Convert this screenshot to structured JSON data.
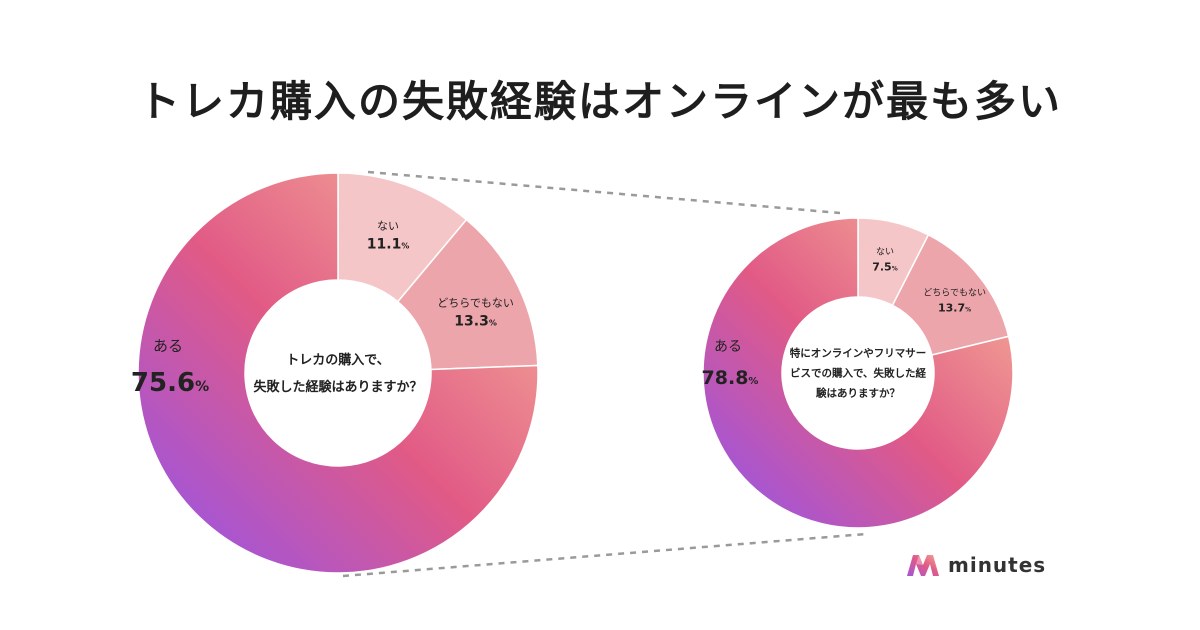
{
  "title": "トレカ購入の失敗経験はオンラインが最も多い",
  "brand": {
    "name": "minutes",
    "logo_icon": "minutes-logo-icon"
  },
  "chart_data": [
    {
      "type": "pie",
      "style": "donut",
      "center_label_lines": [
        "トレカの購入で、",
        "失敗した経験はありますか？"
      ],
      "unit": "%",
      "slices": [
        {
          "label": "ない",
          "value": 11.1,
          "color": "#f5c6c8"
        },
        {
          "label": "どちらでもない",
          "value": 13.3,
          "color": "#eda5ac"
        },
        {
          "label": "ある",
          "value": 75.6,
          "color": "#e15a86"
        }
      ]
    },
    {
      "type": "pie",
      "style": "donut",
      "center_label_lines": [
        "特にオンラインやフリマサー",
        "ビスでの購入で、失敗した経",
        "験はありますか？"
      ],
      "unit": "%",
      "slices": [
        {
          "label": "ない",
          "value": 7.5,
          "color": "#f5c6c8"
        },
        {
          "label": "どちらでもない",
          "value": 13.7,
          "color": "#eda5ac"
        },
        {
          "label": "ある",
          "value": 78.8,
          "color": "#e15a86"
        }
      ]
    }
  ],
  "gradient_colors": [
    "#f3a795",
    "#e15a86",
    "#a355d8"
  ],
  "connector_color": "#9a9a9a"
}
